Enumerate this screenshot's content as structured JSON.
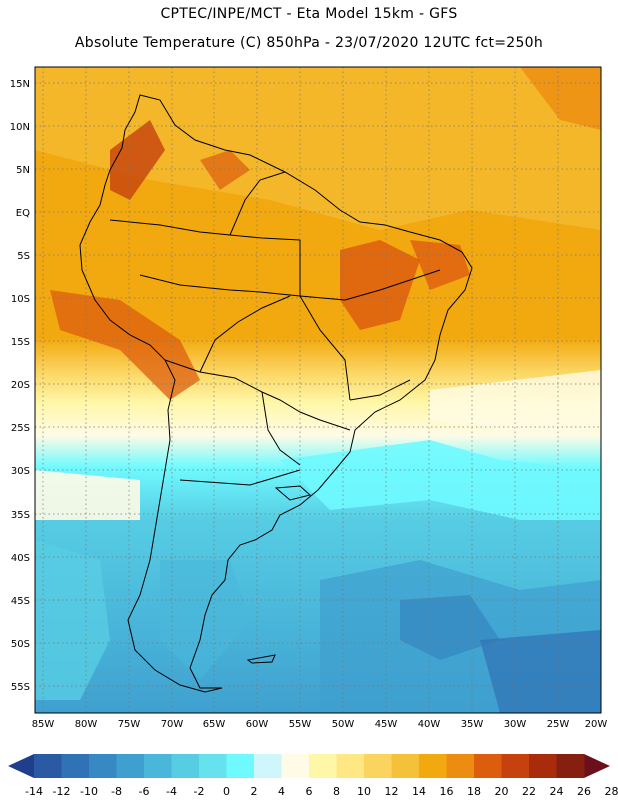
{
  "header": {
    "line1": "CPTEC/INPE/MCT -  Eta Model 15km - GFS",
    "line2": "Absolute Temperature (C) 850hPa - 23/07/2020 12UTC fct=250h"
  },
  "map": {
    "lat_labels": [
      "15N",
      "10N",
      "5N",
      "EQ",
      "5S",
      "10S",
      "15S",
      "20S",
      "25S",
      "30S",
      "35S",
      "40S",
      "45S",
      "50S",
      "55S"
    ],
    "lon_labels": [
      "85W",
      "80W",
      "75W",
      "70W",
      "65W",
      "60W",
      "55W",
      "50W",
      "45W",
      "40W",
      "35W",
      "30W",
      "25W",
      "20W"
    ],
    "lat_range_deg": [
      -58,
      17
    ],
    "lon_range_deg": [
      -86,
      -20
    ]
  },
  "colorbar": {
    "labels": [
      "-14",
      "-12",
      "-10",
      "-8",
      "-6",
      "-4",
      "-2",
      "0",
      "2",
      "4",
      "6",
      "8",
      "10",
      "12",
      "14",
      "16",
      "18",
      "20",
      "22",
      "24",
      "26",
      "28"
    ],
    "colors": [
      "#1f3f8c",
      "#2a5aa3",
      "#2f72b5",
      "#3689c2",
      "#3fa0cf",
      "#4ab7da",
      "#57cde4",
      "#66e2ee",
      "#6ffaff",
      "#cff6fb",
      "#fffbe6",
      "#fff7a8",
      "#ffe783",
      "#fbd45f",
      "#f5c13b",
      "#f2a90f",
      "#ec8c11",
      "#dd5d0f",
      "#c6410d",
      "#a82b0c",
      "#852010",
      "#6c0f1d"
    ]
  }
}
